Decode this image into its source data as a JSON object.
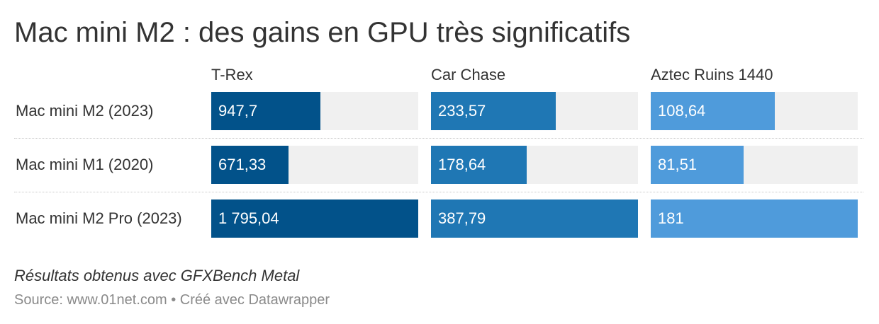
{
  "header": {
    "title": "Mac mini M2 : des gains en GPU très significatifs"
  },
  "footer": {
    "note": "Résultats obtenus avec GFXBench Metal",
    "source": "Source: www.01net.com • Créé avec Datawrapper"
  },
  "colors": {
    "t_rex": "#02528a",
    "car_chase": "#1f77b4",
    "aztec_ruins": "#4f9bdb",
    "track": "#f0f0f0",
    "text": "#333333",
    "source_text": "#8a8a8a"
  },
  "chart_data": {
    "type": "bar",
    "orientation": "horizontal",
    "title": "Mac mini M2 : des gains en GPU très significatifs",
    "categories": [
      "Mac mini M2 (2023)",
      "Mac mini M1 (2020)",
      "Mac mini M2 Pro (2023)"
    ],
    "series": [
      {
        "name": "T-Rex",
        "values": [
          947.7,
          671.33,
          1795.04
        ],
        "value_labels": [
          "947,7",
          "671,33",
          "1 795,04"
        ],
        "max": 1795.04,
        "color": "#02528a"
      },
      {
        "name": "Car Chase",
        "values": [
          233.57,
          178.64,
          387.79
        ],
        "value_labels": [
          "233,57",
          "178,64",
          "387,79"
        ],
        "max": 387.79,
        "color": "#1f77b4"
      },
      {
        "name": "Aztec Ruins 1440",
        "values": [
          108.64,
          81.51,
          181
        ],
        "value_labels": [
          "108,64",
          "81,51",
          "181"
        ],
        "max": 181,
        "color": "#4f9bdb"
      }
    ],
    "grid": false,
    "legend": "column headers"
  }
}
